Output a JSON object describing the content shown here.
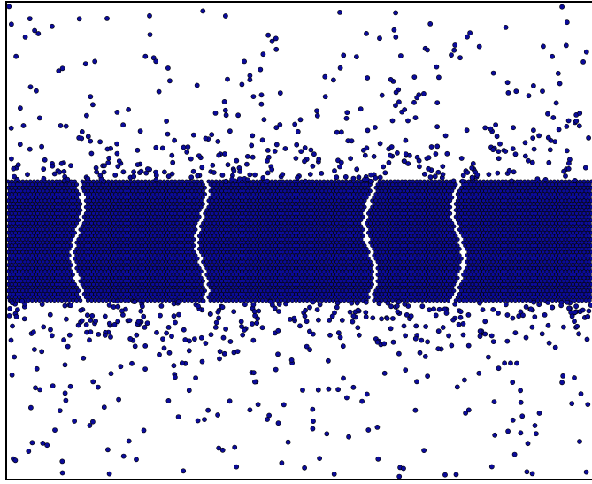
{
  "image": {
    "description_kind": "particle-simulation-snapshot",
    "background_color": "#ffffff",
    "particle_fill": "#0b0b9a",
    "particle_stroke": "#000000",
    "border_color": "#000000"
  },
  "bands": {
    "dense_core_packing": "hexagonal",
    "gap_count": 4
  }
}
